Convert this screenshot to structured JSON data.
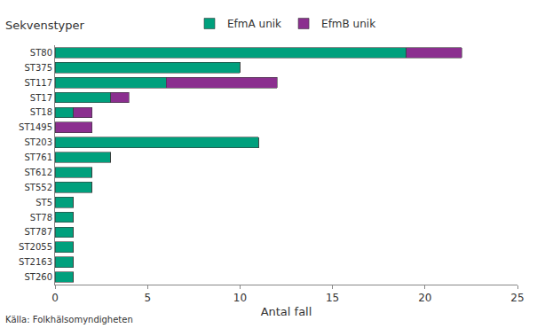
{
  "chart_data": {
    "type": "bar",
    "orientation": "horizontal",
    "stacked": true,
    "ylabel": "Sekvenstyper",
    "xlabel": "Antal fall",
    "annotations": [
      "Källa: Folkhälsomyndigheten"
    ],
    "categories": [
      "ST80",
      "ST375",
      "ST117",
      "ST17",
      "ST18",
      "ST1495",
      "ST203",
      "ST761",
      "ST612",
      "ST552",
      "ST5",
      "ST78",
      "ST787",
      "ST2055",
      "ST2163",
      "ST260"
    ],
    "series": [
      {
        "name": "EfmA unik",
        "color": "#00A07D",
        "values": [
          19,
          10,
          6,
          3,
          1,
          0,
          11,
          3,
          2,
          2,
          1,
          1,
          1,
          1,
          1,
          1
        ]
      },
      {
        "name": "EfmB unik",
        "color": "#8B2F8F",
        "values": [
          3,
          0,
          6,
          1,
          1,
          2,
          0,
          0,
          0,
          0,
          0,
          0,
          0,
          0,
          0,
          0
        ]
      }
    ],
    "xlim": [
      0,
      25
    ],
    "xticks": [
      0,
      5,
      10,
      15,
      20,
      25
    ],
    "grid": false,
    "legend": "top"
  }
}
